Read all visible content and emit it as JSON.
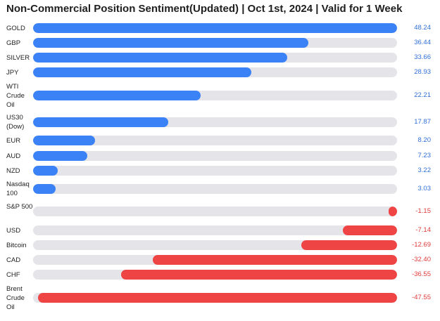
{
  "colors": {
    "positive": "#3b82f6",
    "negative": "#ef4444",
    "track": "#e4e4e9",
    "positive_text": "#2f6fd6",
    "negative_text": "#e03b3b"
  },
  "chart_data": {
    "type": "bar",
    "title": "Non-Commercial Position Sentiment(Updated) | Oct 1st, 2024 | Valid for 1 Week",
    "orientation": "horizontal",
    "categories": [
      "GOLD",
      "GBP",
      "SILVER",
      "JPY",
      "WTI Crude Oil",
      "US30 (Dow)",
      "EUR",
      "AUD",
      "NZD",
      "Nasdaq 100",
      "S&P 500",
      "USD",
      "Bitcoin",
      "CAD",
      "CHF",
      "Brent Crude Oil"
    ],
    "values": [
      48.24,
      36.44,
      33.66,
      28.93,
      22.21,
      17.87,
      8.2,
      7.23,
      3.22,
      3.03,
      -1.15,
      -7.14,
      -12.69,
      -32.4,
      -36.55,
      -47.55
    ],
    "value_labels": [
      "48.24",
      "36.44",
      "33.66",
      "28.93",
      "22.21",
      "17.87",
      "8.20",
      "7.23",
      "3.22",
      "3.03",
      "-1.15",
      "-7.14",
      "-12.69",
      "-32.40",
      "-36.55",
      "-47.55"
    ],
    "xlim": [
      0,
      48.24
    ],
    "grid": false,
    "legend": "none"
  }
}
